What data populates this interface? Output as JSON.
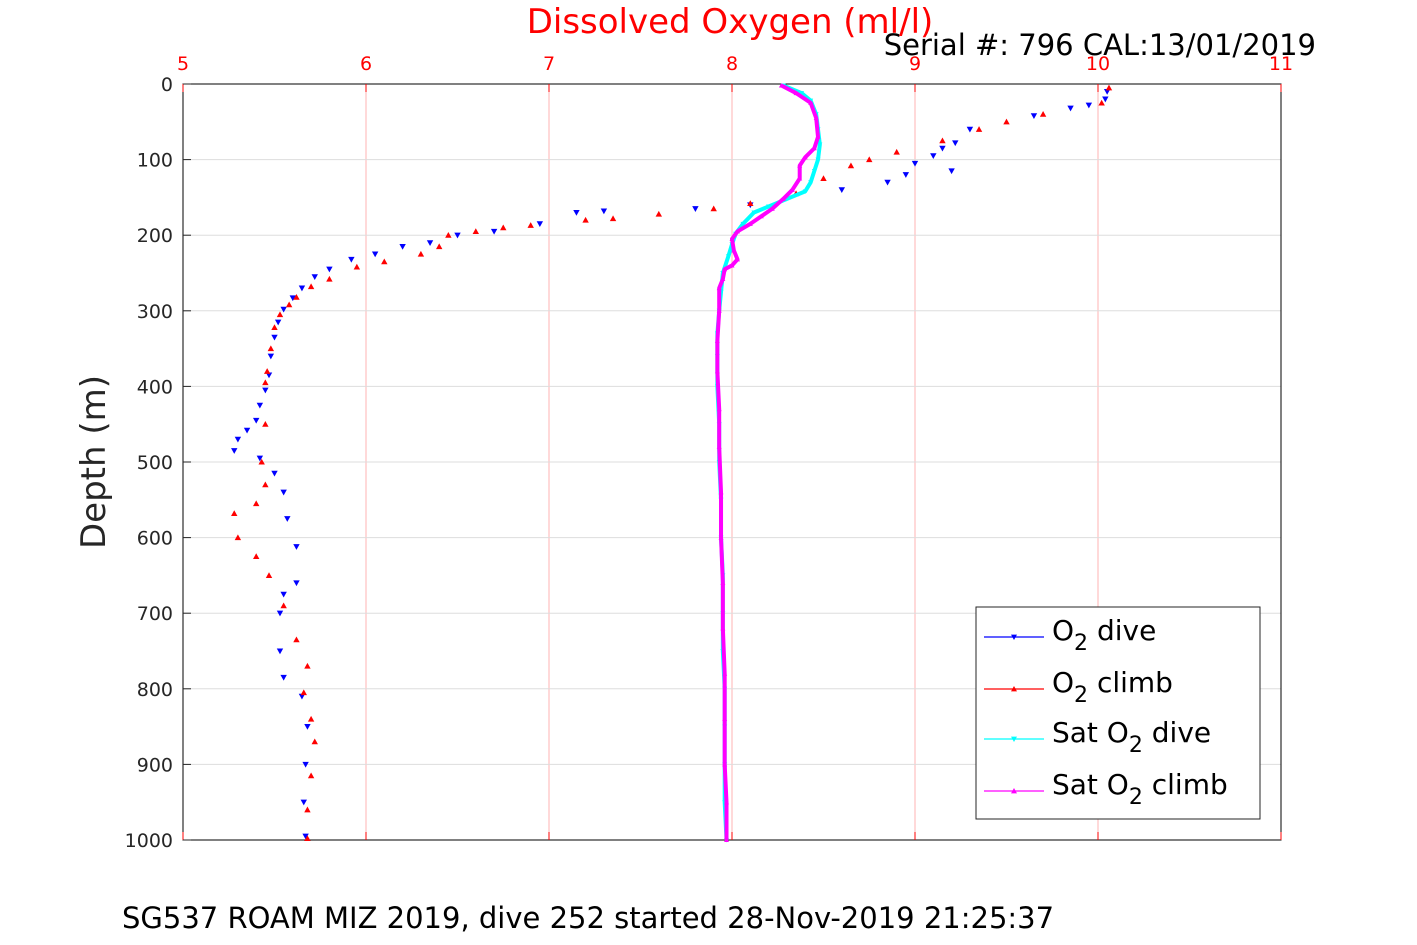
{
  "chart_data": {
    "type": "scatter",
    "title": "Dissolved Oxygen (ml/l)",
    "subtitle": "Serial #: 796  CAL:13/01/2019",
    "footer": "SG537 ROAM MIZ 2019, dive 252 started 28-Nov-2019 21:25:37",
    "xlabel": "",
    "ylabel": "Depth (m)",
    "xlim": [
      5,
      11
    ],
    "ylim": [
      0,
      1000
    ],
    "y_reversed": true,
    "x_axis_position": "top",
    "x_ticks": [
      "5",
      "6",
      "7",
      "8",
      "9",
      "10",
      "11"
    ],
    "y_ticks": [
      "0",
      "100",
      "200",
      "300",
      "400",
      "500",
      "600",
      "700",
      "800",
      "900",
      "1000"
    ],
    "grid": true,
    "legend_position": "bottom-right",
    "colors": {
      "title": "#ff0000",
      "x_ticks": "#ff0000",
      "grid": "#ffb3b3",
      "grid_y": "#dddddd"
    },
    "series": [
      {
        "name_parts": [
          "O",
          "2",
          " dive"
        ],
        "color": "#0000ff",
        "marker": "triangle-down",
        "points": [
          [
            10.05,
            10
          ],
          [
            10.04,
            20
          ],
          [
            9.95,
            28
          ],
          [
            9.85,
            32
          ],
          [
            9.65,
            42
          ],
          [
            9.3,
            60
          ],
          [
            9.22,
            78
          ],
          [
            9.15,
            85
          ],
          [
            9.1,
            95
          ],
          [
            9.0,
            105
          ],
          [
            9.2,
            115
          ],
          [
            8.95,
            120
          ],
          [
            8.85,
            130
          ],
          [
            8.6,
            140
          ],
          [
            8.1,
            160
          ],
          [
            7.8,
            165
          ],
          [
            7.3,
            168
          ],
          [
            7.15,
            170
          ],
          [
            6.95,
            185
          ],
          [
            6.7,
            195
          ],
          [
            6.5,
            200
          ],
          [
            6.35,
            210
          ],
          [
            6.2,
            215
          ],
          [
            6.05,
            225
          ],
          [
            5.92,
            232
          ],
          [
            5.8,
            245
          ],
          [
            5.72,
            255
          ],
          [
            5.65,
            270
          ],
          [
            5.6,
            283
          ],
          [
            5.55,
            298
          ],
          [
            5.52,
            315
          ],
          [
            5.5,
            335
          ],
          [
            5.48,
            360
          ],
          [
            5.47,
            385
          ],
          [
            5.45,
            405
          ],
          [
            5.42,
            425
          ],
          [
            5.4,
            445
          ],
          [
            5.35,
            458
          ],
          [
            5.3,
            470
          ],
          [
            5.28,
            485
          ],
          [
            5.42,
            495
          ],
          [
            5.5,
            515
          ],
          [
            5.55,
            540
          ],
          [
            5.57,
            575
          ],
          [
            5.62,
            612
          ],
          [
            5.62,
            660
          ],
          [
            5.55,
            675
          ],
          [
            5.53,
            700
          ],
          [
            5.53,
            750
          ],
          [
            5.55,
            785
          ],
          [
            5.65,
            810
          ],
          [
            5.68,
            850
          ],
          [
            5.67,
            900
          ],
          [
            5.66,
            950
          ],
          [
            5.67,
            995
          ]
        ]
      },
      {
        "name_parts": [
          "O",
          "2",
          " climb"
        ],
        "color": "#ff0000",
        "marker": "triangle-up",
        "points": [
          [
            10.06,
            5
          ],
          [
            10.02,
            25
          ],
          [
            9.7,
            40
          ],
          [
            9.5,
            50
          ],
          [
            9.35,
            60
          ],
          [
            9.15,
            75
          ],
          [
            8.9,
            90
          ],
          [
            8.75,
            100
          ],
          [
            8.65,
            108
          ],
          [
            8.5,
            125
          ],
          [
            8.35,
            145
          ],
          [
            8.1,
            158
          ],
          [
            7.9,
            165
          ],
          [
            7.6,
            172
          ],
          [
            7.35,
            178
          ],
          [
            7.2,
            180
          ],
          [
            6.9,
            187
          ],
          [
            6.75,
            190
          ],
          [
            6.6,
            195
          ],
          [
            6.45,
            200
          ],
          [
            6.4,
            215
          ],
          [
            6.3,
            225
          ],
          [
            6.1,
            235
          ],
          [
            5.95,
            242
          ],
          [
            5.8,
            258
          ],
          [
            5.7,
            268
          ],
          [
            5.62,
            282
          ],
          [
            5.58,
            292
          ],
          [
            5.53,
            305
          ],
          [
            5.5,
            322
          ],
          [
            5.48,
            350
          ],
          [
            5.46,
            380
          ],
          [
            5.45,
            395
          ],
          [
            5.45,
            450
          ],
          [
            5.43,
            500
          ],
          [
            5.45,
            530
          ],
          [
            5.4,
            555
          ],
          [
            5.28,
            568
          ],
          [
            5.3,
            600
          ],
          [
            5.4,
            625
          ],
          [
            5.47,
            650
          ],
          [
            5.55,
            690
          ],
          [
            5.62,
            735
          ],
          [
            5.68,
            770
          ],
          [
            5.66,
            805
          ],
          [
            5.7,
            840
          ],
          [
            5.72,
            870
          ],
          [
            5.7,
            915
          ],
          [
            5.68,
            960
          ],
          [
            5.68,
            998
          ]
        ]
      },
      {
        "name_parts": [
          "Sat O",
          "2",
          " dive"
        ],
        "color": "#00ffff",
        "marker": "triangle-down",
        "points": [
          [
            8.28,
            2
          ],
          [
            8.38,
            12
          ],
          [
            8.43,
            22
          ],
          [
            8.46,
            40
          ],
          [
            8.47,
            60
          ],
          [
            8.48,
            80
          ],
          [
            8.47,
            100
          ],
          [
            8.45,
            115
          ],
          [
            8.43,
            130
          ],
          [
            8.4,
            142
          ],
          [
            8.3,
            152
          ],
          [
            8.2,
            162
          ],
          [
            8.12,
            170
          ],
          [
            8.06,
            185
          ],
          [
            8.02,
            198
          ],
          [
            8.0,
            212
          ],
          [
            7.98,
            228
          ],
          [
            7.95,
            250
          ],
          [
            7.94,
            275
          ],
          [
            7.93,
            300
          ],
          [
            7.92,
            330
          ],
          [
            7.92,
            360
          ],
          [
            7.92,
            400
          ],
          [
            7.93,
            450
          ],
          [
            7.93,
            500
          ],
          [
            7.94,
            550
          ],
          [
            7.94,
            600
          ],
          [
            7.95,
            650
          ],
          [
            7.95,
            700
          ],
          [
            7.95,
            750
          ],
          [
            7.96,
            800
          ],
          [
            7.96,
            850
          ],
          [
            7.96,
            900
          ],
          [
            7.96,
            950
          ],
          [
            7.97,
            1000
          ]
        ]
      },
      {
        "name_parts": [
          "Sat O",
          "2",
          " climb"
        ],
        "color": "#ff00ff",
        "marker": "triangle-up",
        "points": [
          [
            8.27,
            2
          ],
          [
            8.35,
            12
          ],
          [
            8.43,
            25
          ],
          [
            8.46,
            45
          ],
          [
            8.47,
            70
          ],
          [
            8.45,
            85
          ],
          [
            8.4,
            97
          ],
          [
            8.37,
            108
          ],
          [
            8.37,
            125
          ],
          [
            8.33,
            140
          ],
          [
            8.28,
            152
          ],
          [
            8.22,
            165
          ],
          [
            8.16,
            175
          ],
          [
            8.1,
            185
          ],
          [
            8.03,
            195
          ],
          [
            8.0,
            205
          ],
          [
            8.01,
            220
          ],
          [
            8.03,
            232
          ],
          [
            8.0,
            240
          ],
          [
            7.96,
            245
          ],
          [
            7.95,
            258
          ],
          [
            7.93,
            270
          ],
          [
            7.93,
            300
          ],
          [
            7.92,
            340
          ],
          [
            7.92,
            380
          ],
          [
            7.93,
            430
          ],
          [
            7.93,
            480
          ],
          [
            7.94,
            540
          ],
          [
            7.94,
            600
          ],
          [
            7.95,
            660
          ],
          [
            7.95,
            720
          ],
          [
            7.96,
            780
          ],
          [
            7.96,
            840
          ],
          [
            7.96,
            900
          ],
          [
            7.97,
            950
          ],
          [
            7.97,
            1000
          ]
        ]
      }
    ]
  }
}
